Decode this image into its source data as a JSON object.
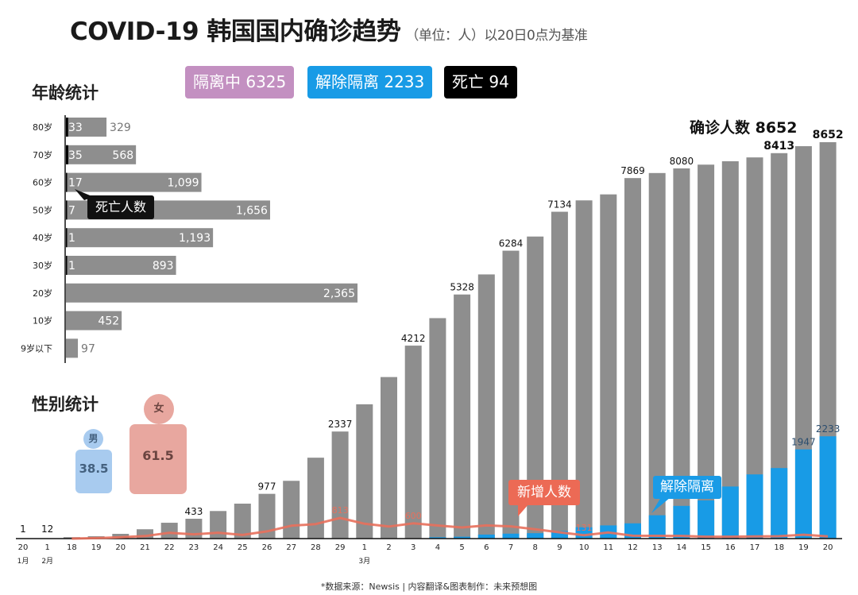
{
  "header": {
    "title": "COVID-19 韩国国内确诊趋势",
    "subtitle": "（单位：人）以20日0点为基准"
  },
  "badges": [
    {
      "label": "隔离中 6325",
      "color": "#c390c1"
    },
    {
      "label": "解除隔离 2233",
      "color": "#189be6"
    },
    {
      "label": "死亡 94",
      "color": "#000000"
    }
  ],
  "age": {
    "title": "年龄统计",
    "death_callout": "死亡人数",
    "rows": [
      {
        "label": "80岁",
        "total": 329,
        "total_text": "329",
        "deaths": 33,
        "deaths_text": "33"
      },
      {
        "label": "70岁",
        "total": 568,
        "total_text": "568",
        "deaths": 35,
        "deaths_text": "35"
      },
      {
        "label": "60岁",
        "total": 1099,
        "total_text": "1,099",
        "deaths": 17,
        "deaths_text": "17"
      },
      {
        "label": "50岁",
        "total": 1656,
        "total_text": "1,656",
        "deaths": 7,
        "deaths_text": "7"
      },
      {
        "label": "40岁",
        "total": 1193,
        "total_text": "1,193",
        "deaths": 1,
        "deaths_text": "1"
      },
      {
        "label": "30岁",
        "total": 893,
        "total_text": "893",
        "deaths": 1,
        "deaths_text": "1"
      },
      {
        "label": "20岁",
        "total": 2365,
        "total_text": "2,365",
        "deaths": 0,
        "deaths_text": ""
      },
      {
        "label": "10岁",
        "total": 452,
        "total_text": "452",
        "deaths": 0,
        "deaths_text": ""
      },
      {
        "label": "9岁以下",
        "total": 97,
        "total_text": "97",
        "deaths": 0,
        "deaths_text": ""
      }
    ]
  },
  "gender": {
    "title": "性别统计",
    "male_label": "男",
    "male_value": "38.5",
    "female_label": "女",
    "female_value": "61.5",
    "male_color": "#a8cbef",
    "female_color": "#e8a79f"
  },
  "chart_data": {
    "type": "bar",
    "title": "确诊人数 8652",
    "categories": [
      "20",
      "1",
      "18",
      "19",
      "20",
      "21",
      "22",
      "23",
      "24",
      "25",
      "26",
      "27",
      "28",
      "29",
      "1",
      "2",
      "3",
      "4",
      "5",
      "6",
      "7",
      "8",
      "9",
      "10",
      "11",
      "12",
      "13",
      "14",
      "15",
      "16",
      "17",
      "18",
      "19",
      "20"
    ],
    "month_labels": [
      {
        "index": 0,
        "text": "1月"
      },
      {
        "index": 1,
        "text": "2月"
      },
      {
        "index": 14,
        "text": "3月"
      }
    ],
    "series": [
      {
        "name": "确诊人数",
        "type": "bar",
        "color": "#8e8e8e",
        "values": [
          1,
          12,
          31,
          51,
          104,
          204,
          346,
          433,
          602,
          763,
          977,
          1261,
          1766,
          2337,
          2931,
          3526,
          4212,
          4812,
          5328,
          5766,
          6284,
          6593,
          7134,
          7382,
          7513,
          7869,
          7979,
          8080,
          8162,
          8236,
          8320,
          8413,
          8565,
          8652
        ],
        "labels": [
          "1",
          "12",
          null,
          null,
          null,
          null,
          null,
          "433",
          null,
          null,
          "977",
          null,
          null,
          "2337",
          null,
          null,
          "4212",
          null,
          "5328",
          null,
          "6284",
          null,
          "7134",
          null,
          null,
          "7869",
          null,
          "8080",
          null,
          null,
          null,
          "8413",
          null,
          "8652"
        ]
      },
      {
        "name": "解除隔离",
        "type": "bar",
        "color": "#189be6",
        "values": [
          0,
          0,
          0,
          0,
          0,
          0,
          0,
          0,
          0,
          0,
          0,
          0,
          0,
          0,
          0,
          0,
          0,
          30,
          41,
          88,
          108,
          118,
          166,
          247,
          288,
          333,
          510,
          714,
          834,
          1137,
          1401,
          1540,
          1947,
          2233
        ],
        "labels": [
          null,
          null,
          null,
          null,
          null,
          null,
          null,
          null,
          null,
          null,
          null,
          null,
          null,
          null,
          null,
          null,
          null,
          null,
          null,
          null,
          null,
          null,
          null,
          null,
          null,
          null,
          null,
          null,
          null,
          null,
          null,
          null,
          "1947",
          "2233"
        ]
      },
      {
        "name": "新增人数",
        "type": "line",
        "color": "#e8705c",
        "values": [
          null,
          null,
          1,
          20,
          53,
          100,
          229,
          169,
          231,
          144,
          284,
          505,
          571,
          813,
          586,
          476,
          600,
          516,
          438,
          518,
          483,
          367,
          248,
          131,
          242,
          114,
          110,
          107,
          76,
          74,
          84,
          93,
          152,
          87
        ],
        "labels": [
          null,
          null,
          null,
          null,
          null,
          null,
          null,
          null,
          null,
          null,
          null,
          null,
          null,
          "813",
          null,
          null,
          "600",
          null,
          null,
          null,
          null,
          null,
          null,
          "131",
          null,
          null,
          null,
          null,
          null,
          null,
          null,
          null,
          null,
          null
        ]
      }
    ],
    "callouts": {
      "new_cases": "新增人数",
      "released": "解除隔离"
    },
    "grid": false
  },
  "footer": "*数据来源：Newsis | 内容翻译&图表制作：未来预想图"
}
